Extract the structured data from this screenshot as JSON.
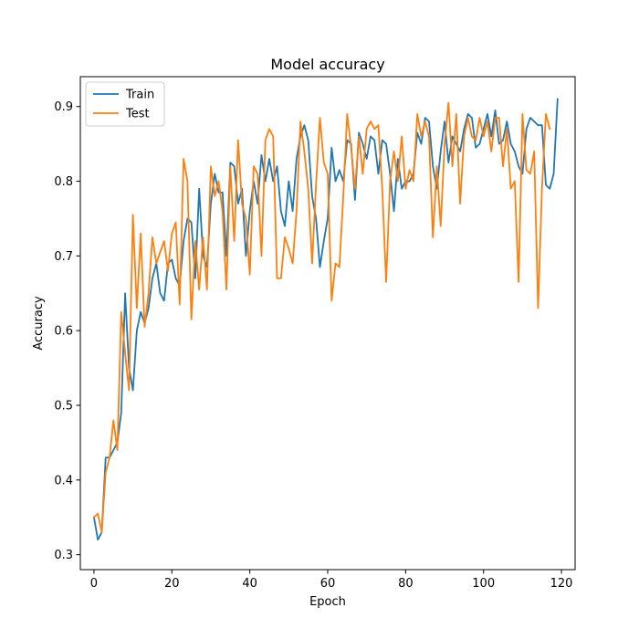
{
  "chart_data": {
    "type": "line",
    "title": "Model accuracy",
    "xlabel": "Epoch",
    "ylabel": "Accuracy",
    "xlim": [
      -3.5,
      123.5
    ],
    "ylim": [
      0.28,
      0.94
    ],
    "xticks": [
      0,
      20,
      40,
      60,
      80,
      100,
      120
    ],
    "yticks": [
      0.3,
      0.4,
      0.5,
      0.6,
      0.7,
      0.8,
      0.9
    ],
    "legend_position": "top-left",
    "grid": false,
    "series": [
      {
        "name": "Train",
        "color": "#1f77b4",
        "values": [
          0.35,
          0.32,
          0.33,
          0.43,
          0.43,
          0.44,
          0.45,
          0.49,
          0.65,
          0.55,
          0.52,
          0.6,
          0.625,
          0.61,
          0.63,
          0.67,
          0.69,
          0.65,
          0.64,
          0.69,
          0.695,
          0.67,
          0.66,
          0.72,
          0.75,
          0.745,
          0.67,
          0.79,
          0.7,
          0.685,
          0.77,
          0.81,
          0.785,
          0.785,
          0.7,
          0.825,
          0.82,
          0.77,
          0.79,
          0.7,
          0.76,
          0.8,
          0.77,
          0.835,
          0.8,
          0.83,
          0.8,
          0.82,
          0.76,
          0.74,
          0.8,
          0.76,
          0.83,
          0.86,
          0.875,
          0.855,
          0.78,
          0.75,
          0.685,
          0.72,
          0.75,
          0.845,
          0.8,
          0.815,
          0.8,
          0.855,
          0.85,
          0.775,
          0.865,
          0.85,
          0.83,
          0.86,
          0.855,
          0.81,
          0.855,
          0.85,
          0.81,
          0.76,
          0.83,
          0.79,
          0.8,
          0.8,
          0.81,
          0.865,
          0.85,
          0.885,
          0.88,
          0.82,
          0.79,
          0.84,
          0.88,
          0.825,
          0.86,
          0.85,
          0.84,
          0.87,
          0.89,
          0.885,
          0.845,
          0.85,
          0.87,
          0.89,
          0.86,
          0.895,
          0.85,
          0.855,
          0.88,
          0.85,
          0.84,
          0.82,
          0.81,
          0.87,
          0.885,
          0.88,
          0.875,
          0.875,
          0.795,
          0.79,
          0.81,
          0.91
        ]
      },
      {
        "name": "Test",
        "color": "#ff7f0e",
        "values": [
          0.35,
          0.355,
          0.33,
          0.41,
          0.43,
          0.48,
          0.44,
          0.625,
          0.57,
          0.52,
          0.755,
          0.63,
          0.73,
          0.605,
          0.65,
          0.725,
          0.69,
          0.705,
          0.72,
          0.68,
          0.73,
          0.745,
          0.635,
          0.83,
          0.8,
          0.615,
          0.72,
          0.655,
          0.725,
          0.655,
          0.82,
          0.78,
          0.8,
          0.76,
          0.655,
          0.82,
          0.72,
          0.855,
          0.77,
          0.75,
          0.675,
          0.82,
          0.81,
          0.7,
          0.855,
          0.87,
          0.86,
          0.67,
          0.67,
          0.725,
          0.71,
          0.69,
          0.76,
          0.88,
          0.84,
          0.79,
          0.69,
          0.795,
          0.885,
          0.825,
          0.81,
          0.64,
          0.69,
          0.685,
          0.78,
          0.89,
          0.845,
          0.79,
          0.86,
          0.81,
          0.87,
          0.88,
          0.87,
          0.875,
          0.79,
          0.665,
          0.8,
          0.84,
          0.8,
          0.86,
          0.79,
          0.815,
          0.8,
          0.89,
          0.86,
          0.88,
          0.86,
          0.725,
          0.82,
          0.74,
          0.85,
          0.905,
          0.82,
          0.89,
          0.77,
          0.86,
          0.885,
          0.86,
          0.855,
          0.885,
          0.86,
          0.88,
          0.84,
          0.885,
          0.885,
          0.82,
          0.87,
          0.79,
          0.8,
          0.665,
          0.89,
          0.815,
          0.81,
          0.84,
          0.63,
          0.79,
          0.89,
          0.87
        ]
      }
    ]
  }
}
